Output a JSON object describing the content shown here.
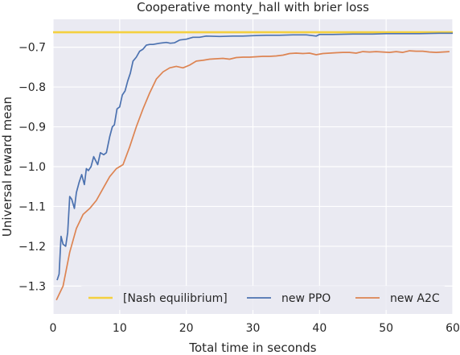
{
  "chart_data": {
    "type": "line",
    "title": "Cooperative monty_hall with brier loss",
    "xlabel": "Total time in seconds",
    "ylabel": "Universal reward mean",
    "xlim": [
      0,
      60
    ],
    "ylim": [
      -1.37,
      -0.63
    ],
    "xticks": [
      0,
      10,
      20,
      30,
      40,
      50,
      60
    ],
    "yticks": [
      -1.3,
      -1.2,
      -1.1,
      -1.0,
      -0.9,
      -0.8,
      -0.7
    ],
    "xtick_labels": [
      "0",
      "10",
      "20",
      "30",
      "40",
      "50",
      "60"
    ],
    "ytick_labels": [
      "−1.3",
      "−1.2",
      "−1.1",
      "−1.0",
      "−0.9",
      "−0.8",
      "−0.7"
    ],
    "grid": true,
    "legend_position": "bottom",
    "series": [
      {
        "name": "[Nash equilibrium]",
        "color": "#f4d03f",
        "style": "line",
        "x": [
          0,
          60
        ],
        "y": [
          -0.6625,
          -0.6625
        ]
      },
      {
        "name": "new PPO",
        "color": "#4c72b0",
        "style": "line",
        "x": [
          0.6,
          0.9,
          1.2,
          1.5,
          1.9,
          2.2,
          2.5,
          2.8,
          3.2,
          3.5,
          3.9,
          4.3,
          4.7,
          5.0,
          5.3,
          5.7,
          6.1,
          6.4,
          6.7,
          7.1,
          7.6,
          8.0,
          8.5,
          8.9,
          9.2,
          9.6,
          10.0,
          10.4,
          10.8,
          11.2,
          11.6,
          12.0,
          12.5,
          13.0,
          13.5,
          14.0,
          14.5,
          15.0,
          16.0,
          17.0,
          17.6,
          18.2,
          19.0,
          20.0,
          21.0,
          22.0,
          23.0,
          25.0,
          27.0,
          28.5,
          30.0,
          32.0,
          34.0,
          36.0,
          38.0,
          39.5,
          40.0,
          42.0,
          45.0,
          48.0,
          50.0,
          52.0,
          55.0,
          58.0,
          60.0
        ],
        "y": [
          -1.285,
          -1.27,
          -1.175,
          -1.195,
          -1.2,
          -1.165,
          -1.075,
          -1.082,
          -1.105,
          -1.065,
          -1.04,
          -1.02,
          -1.045,
          -1.005,
          -1.01,
          -1.0,
          -0.975,
          -0.985,
          -0.995,
          -0.965,
          -0.97,
          -0.965,
          -0.925,
          -0.9,
          -0.895,
          -0.855,
          -0.85,
          -0.82,
          -0.81,
          -0.785,
          -0.765,
          -0.735,
          -0.725,
          -0.71,
          -0.705,
          -0.695,
          -0.693,
          -0.693,
          -0.69,
          -0.688,
          -0.69,
          -0.689,
          -0.682,
          -0.68,
          -0.675,
          -0.675,
          -0.672,
          -0.673,
          -0.672,
          -0.672,
          -0.671,
          -0.67,
          -0.67,
          -0.669,
          -0.669,
          -0.672,
          -0.668,
          -0.668,
          -0.667,
          -0.667,
          -0.666,
          -0.666,
          -0.666,
          -0.665,
          -0.665
        ]
      },
      {
        "name": "new A2C",
        "color": "#dd8452",
        "style": "line",
        "x": [
          0.5,
          1.5,
          2.5,
          3.5,
          4.5,
          5.5,
          6.5,
          7.5,
          8.5,
          9.5,
          10.5,
          11.5,
          12.5,
          13.5,
          14.5,
          15.5,
          16.5,
          17.5,
          18.5,
          19.5,
          20.5,
          21.5,
          22.5,
          23.5,
          24.5,
          25.5,
          26.5,
          27.5,
          28.5,
          29.5,
          30.5,
          31.5,
          32.5,
          33.5,
          34.5,
          35.5,
          36.5,
          37.5,
          38.5,
          39.5,
          40.5,
          41.5,
          42.5,
          43.5,
          44.5,
          45.5,
          46.5,
          47.5,
          48.5,
          49.5,
          50.5,
          51.5,
          52.5,
          53.5,
          54.5,
          55.5,
          56.5,
          57.5,
          58.5,
          59.5
        ],
        "y": [
          -1.335,
          -1.3,
          -1.215,
          -1.155,
          -1.12,
          -1.105,
          -1.085,
          -1.055,
          -1.025,
          -1.005,
          -0.995,
          -0.95,
          -0.9,
          -0.855,
          -0.815,
          -0.78,
          -0.762,
          -0.752,
          -0.748,
          -0.752,
          -0.745,
          -0.735,
          -0.733,
          -0.73,
          -0.729,
          -0.728,
          -0.73,
          -0.726,
          -0.725,
          -0.725,
          -0.724,
          -0.723,
          -0.723,
          -0.722,
          -0.72,
          -0.716,
          -0.715,
          -0.716,
          -0.715,
          -0.719,
          -0.716,
          -0.715,
          -0.714,
          -0.713,
          -0.713,
          -0.715,
          -0.711,
          -0.712,
          -0.711,
          -0.712,
          -0.713,
          -0.711,
          -0.713,
          -0.709,
          -0.71,
          -0.71,
          -0.712,
          -0.713,
          -0.712,
          -0.711
        ]
      }
    ]
  }
}
